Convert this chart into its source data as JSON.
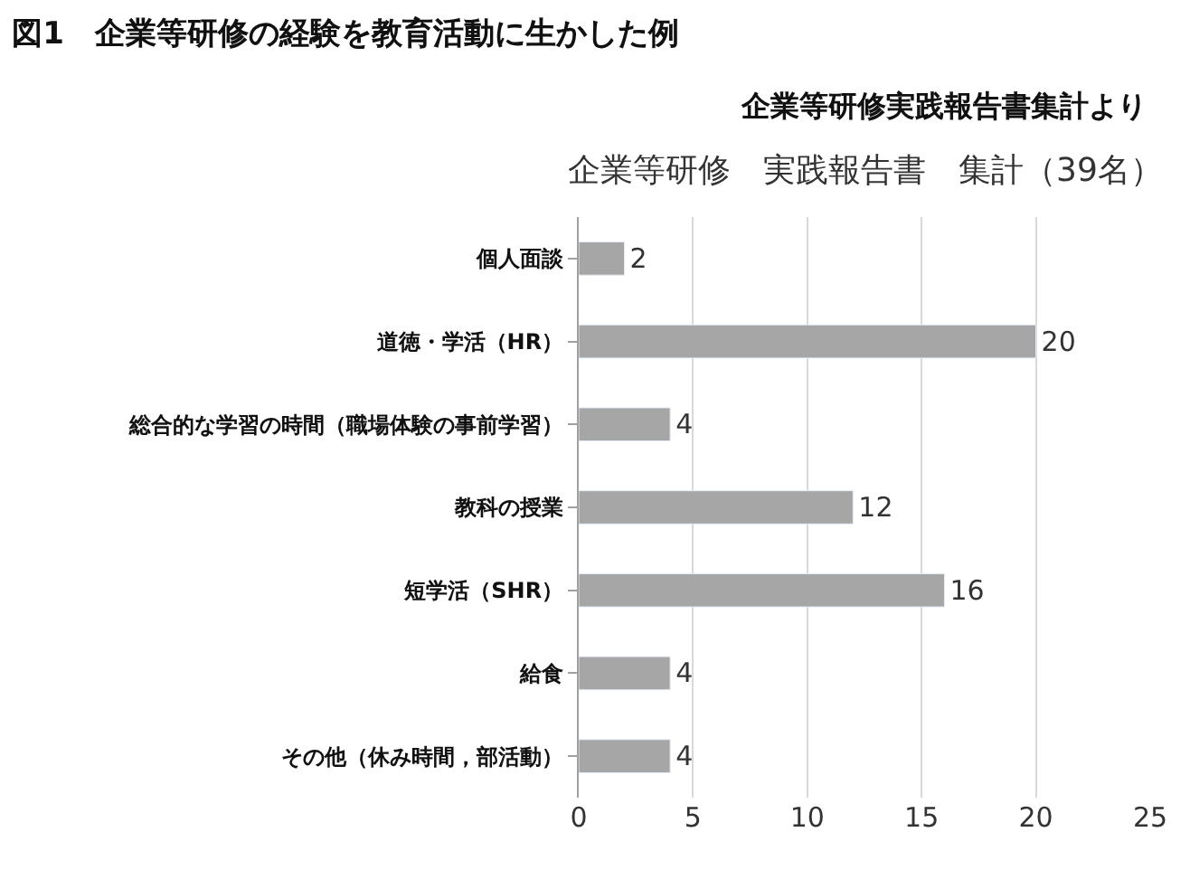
{
  "chart_data": {
    "type": "bar",
    "orientation": "horizontal",
    "title": "図1　企業等研修の経験を教育活動に生かした例",
    "subtitle": "企業等研修実践報告書集計より",
    "annotations": [
      "企業等研修　実践報告書　集計（39名）"
    ],
    "categories": [
      "個人面談",
      "道徳・学活（HR）",
      "総合的な学習の時間（職場体験の事前学習）",
      "教科の授業",
      "短学活（SHR）",
      "給食",
      "その他（休み時間，部活動）"
    ],
    "values": [
      2,
      20,
      4,
      12,
      16,
      4,
      4
    ],
    "color": "#a6a6a6",
    "xlim": [
      0,
      25
    ],
    "xticks": [
      0,
      5,
      10,
      15,
      20,
      25
    ],
    "grid": "x",
    "data_labels": true
  }
}
